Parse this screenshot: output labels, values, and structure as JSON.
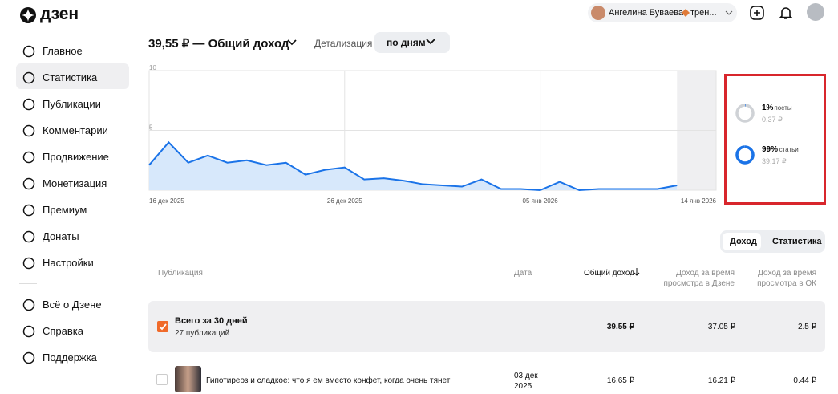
{
  "header": {
    "logo": "дзен",
    "user": "Ангелина Буваева",
    "channel": "трен..."
  },
  "sidebar": {
    "main": [
      "Главное",
      "Статистика",
      "Публикации",
      "Комментарии",
      "Продвижение",
      "Монетизация",
      "Премиум",
      "Донаты",
      "Настройки"
    ],
    "extra": [
      "Всё о Дзене",
      "Справка",
      "Поддержка"
    ]
  },
  "summary": {
    "title": "39,55 ₽ — Общий доход",
    "detail_label": "Детализация",
    "period": "по дням"
  },
  "chart_data": {
    "type": "area",
    "categories": [
      "16 дек 2025",
      null,
      null,
      null,
      null,
      null,
      null,
      null,
      null,
      null,
      "26 дек 2025",
      null,
      null,
      null,
      null,
      null,
      null,
      null,
      null,
      null,
      "05 янв 2026",
      null,
      null,
      null,
      null,
      null,
      null,
      null,
      null,
      "14 янв 2026"
    ],
    "values": [
      2.1,
      4.0,
      2.3,
      2.9,
      2.3,
      2.5,
      2.1,
      2.3,
      1.3,
      1.7,
      1.9,
      0.9,
      1.0,
      0.8,
      0.5,
      0.4,
      0.3,
      0.9,
      0.1,
      0.1,
      0.0,
      0.7,
      0.0,
      0.1,
      0.1,
      0.1,
      0.1,
      0.4,
      null,
      null
    ],
    "color": "#1a73e8",
    "fill": "#d7e8fb",
    "ylim": [
      0,
      10
    ],
    "yticks": [
      0,
      5,
      10
    ],
    "grid": true
  },
  "breakdown": [
    {
      "percent": {
        "value": 1,
        "label": "1%"
      },
      "name": "посты",
      "amount": "0,37 ₽"
    },
    {
      "percent": {
        "value": 99,
        "label": "99%"
      },
      "name": "статьи",
      "amount": "39,17 ₽"
    }
  ],
  "tabs": [
    "Доход",
    "Статистика"
  ],
  "table": {
    "headers": [
      "Публикация",
      "Дата",
      "Общий доход",
      "Доход за время просмотра в Дзене",
      "Доход за время просмотра в ОК"
    ],
    "total": {
      "title": "Всего за 30 дней",
      "subtitle": "27 публикаций",
      "total": "39.55 ₽",
      "dzen": "37.05 ₽",
      "ok": "2.5 ₽"
    },
    "rows": [
      {
        "title": "Гипотиреоз и сладкое: что я ем вместо конфет, когда очень тянет",
        "date": "03 дек 2025",
        "total": "16.65 ₽",
        "dzen": "16.21 ₽",
        "ok": "0.44 ₽"
      }
    ]
  }
}
